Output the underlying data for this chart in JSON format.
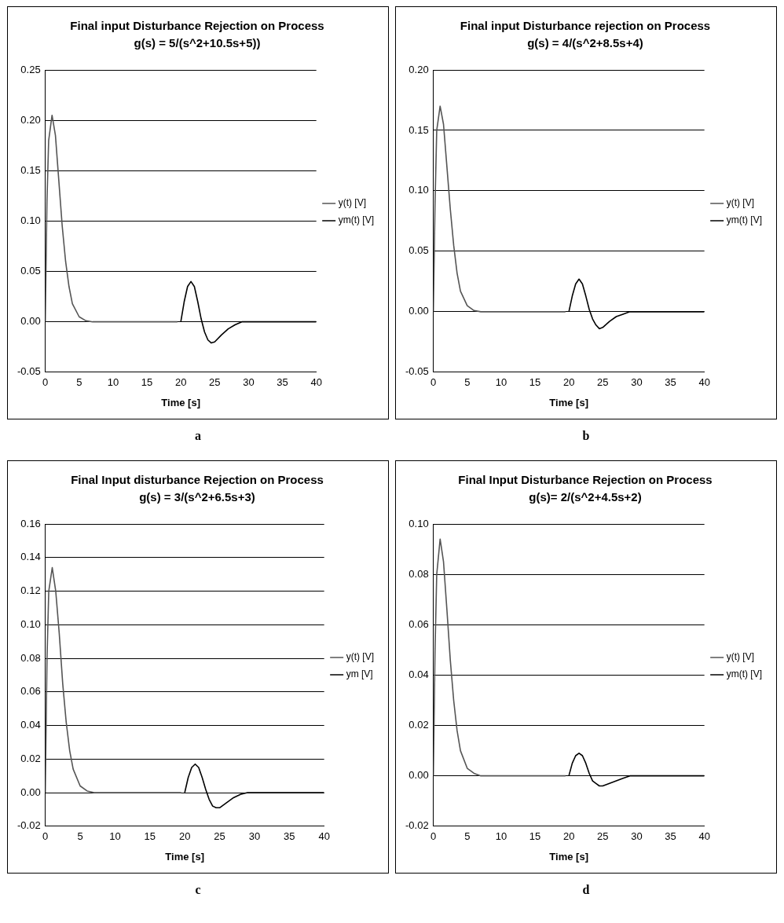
{
  "chart_data": [
    {
      "type": "line",
      "title": "Final input Disturbance Rejection on Process",
      "subtitle": "g(s) = 5/(s^2+10.5s+5))",
      "xlabel": "Time [s]",
      "annotations": [
        "a"
      ],
      "legend": "right",
      "grid": "y",
      "marker": "none",
      "xlim": [
        0,
        40
      ],
      "xticks": [
        0,
        5,
        10,
        15,
        20,
        25,
        30,
        35,
        40
      ],
      "ylim": [
        -0.05,
        0.25
      ],
      "yticks": [
        {
          "value": -0.05,
          "label": "-0.05"
        },
        {
          "value": 0,
          "label": "0.00"
        },
        {
          "value": 0.05,
          "label": "0.05"
        },
        {
          "value": 0.1,
          "label": "0.10"
        },
        {
          "value": 0.15,
          "label": "0.15"
        },
        {
          "value": 0.2,
          "label": "0.20"
        },
        {
          "value": 0.25,
          "label": "0.25"
        }
      ],
      "series": [
        {
          "name": "y(t) [V]",
          "color": "#555555",
          "x": [
            0,
            0.25,
            0.5,
            1,
            1.5,
            2,
            2.5,
            3,
            3.5,
            4,
            5,
            6,
            7,
            10,
            15,
            19.5
          ],
          "values": [
            0,
            0.12,
            0.18,
            0.205,
            0.185,
            0.14,
            0.095,
            0.06,
            0.035,
            0.018,
            0.005,
            0.001,
            0,
            0,
            0,
            0
          ]
        },
        {
          "name": "ym(t) [V]",
          "color": "#000000",
          "x": [
            20,
            20.5,
            21,
            21.5,
            22,
            22.5,
            23,
            23.5,
            24,
            24.5,
            25,
            26,
            27,
            28,
            29,
            30,
            35,
            40
          ],
          "values": [
            0,
            0.02,
            0.035,
            0.04,
            0.035,
            0.02,
            0.003,
            -0.01,
            -0.018,
            -0.021,
            -0.02,
            -0.013,
            -0.007,
            -0.003,
            0,
            0,
            0,
            0
          ]
        }
      ]
    },
    {
      "type": "line",
      "title": "Final input Disturbance rejection on Process",
      "subtitle": "g(s) = 4/(s^2+8.5s+4)",
      "xlabel": "Time [s]",
      "annotations": [
        "b"
      ],
      "legend": "right",
      "grid": "y",
      "marker": "none",
      "xlim": [
        0,
        40
      ],
      "xticks": [
        0,
        5,
        10,
        15,
        20,
        25,
        30,
        35,
        40
      ],
      "ylim": [
        -0.05,
        0.2
      ],
      "yticks": [
        {
          "value": -0.05,
          "label": "-0.05"
        },
        {
          "value": 0,
          "label": "0.00"
        },
        {
          "value": 0.05,
          "label": "0.05"
        },
        {
          "value": 0.1,
          "label": "0.10"
        },
        {
          "value": 0.15,
          "label": "0.15"
        },
        {
          "value": 0.2,
          "label": "0.20"
        }
      ],
      "series": [
        {
          "name": "y(t) [V]",
          "color": "#555555",
          "x": [
            0,
            0.25,
            0.5,
            1,
            1.5,
            2,
            2.5,
            3,
            3.5,
            4,
            5,
            6,
            7,
            10,
            15,
            19.5
          ],
          "values": [
            0,
            0.09,
            0.15,
            0.17,
            0.155,
            0.12,
            0.085,
            0.055,
            0.032,
            0.017,
            0.005,
            0.001,
            0,
            0,
            0,
            0
          ]
        },
        {
          "name": "ym(t) [V]",
          "color": "#000000",
          "x": [
            20,
            20.5,
            21,
            21.5,
            22,
            22.5,
            23,
            23.5,
            24,
            24.5,
            25,
            26,
            27,
            28,
            29,
            30,
            35,
            40
          ],
          "values": [
            0,
            0.013,
            0.023,
            0.027,
            0.023,
            0.013,
            0.002,
            -0.006,
            -0.011,
            -0.014,
            -0.013,
            -0.008,
            -0.004,
            -0.002,
            0,
            0,
            0,
            0
          ]
        }
      ]
    },
    {
      "type": "line",
      "title": "Final Input disturbance Rejection on Process",
      "subtitle": "g(s) = 3/(s^2+6.5s+3)",
      "xlabel": "Time [s]",
      "annotations": [
        "c"
      ],
      "legend": "right",
      "grid": "y",
      "marker": "none",
      "xlim": [
        0,
        40
      ],
      "xticks": [
        0,
        5,
        10,
        15,
        20,
        25,
        30,
        35,
        40
      ],
      "ylim": [
        -0.02,
        0.16
      ],
      "yticks": [
        {
          "value": -0.02,
          "label": "-0.02"
        },
        {
          "value": 0,
          "label": "0.00"
        },
        {
          "value": 0.02,
          "label": "0.02"
        },
        {
          "value": 0.04,
          "label": "0.04"
        },
        {
          "value": 0.06,
          "label": "0.06"
        },
        {
          "value": 0.08,
          "label": "0.08"
        },
        {
          "value": 0.1,
          "label": "0.10"
        },
        {
          "value": 0.12,
          "label": "0.12"
        },
        {
          "value": 0.14,
          "label": "0.14"
        },
        {
          "value": 0.16,
          "label": "0.16"
        }
      ],
      "series": [
        {
          "name": "y(t) [V]",
          "color": "#555555",
          "x": [
            0,
            0.25,
            0.5,
            1,
            1.5,
            2,
            2.5,
            3,
            3.5,
            4,
            5,
            6,
            7,
            10,
            15,
            19.5
          ],
          "values": [
            0,
            0.08,
            0.12,
            0.134,
            0.12,
            0.095,
            0.065,
            0.042,
            0.025,
            0.014,
            0.004,
            0.001,
            0,
            0,
            0,
            0
          ]
        },
        {
          "name": "ym [V]",
          "color": "#000000",
          "x": [
            20,
            20.5,
            21,
            21.5,
            22,
            22.5,
            23,
            23.5,
            24,
            24.5,
            25,
            26,
            27,
            28,
            29,
            30,
            35,
            40
          ],
          "values": [
            0,
            0.009,
            0.015,
            0.017,
            0.015,
            0.009,
            0.002,
            -0.004,
            -0.008,
            -0.009,
            -0.009,
            -0.006,
            -0.003,
            -0.001,
            0,
            0,
            0,
            0
          ]
        }
      ]
    },
    {
      "type": "line",
      "title": "Final Input Disturbance Rejection on Process",
      "subtitle": "g(s)= 2/(s^2+4.5s+2)",
      "xlabel": "Time [s]",
      "annotations": [
        "d"
      ],
      "legend": "right",
      "grid": "y",
      "marker": "none",
      "xlim": [
        0,
        40
      ],
      "xticks": [
        0,
        5,
        10,
        15,
        20,
        25,
        30,
        35,
        40
      ],
      "ylim": [
        -0.02,
        0.1
      ],
      "yticks": [
        {
          "value": -0.02,
          "label": "-0.02"
        },
        {
          "value": 0,
          "label": "0.00"
        },
        {
          "value": 0.02,
          "label": "0.02"
        },
        {
          "value": 0.04,
          "label": "0.04"
        },
        {
          "value": 0.06,
          "label": "0.06"
        },
        {
          "value": 0.08,
          "label": "0.08"
        },
        {
          "value": 0.1,
          "label": "0.10"
        }
      ],
      "series": [
        {
          "name": "y(t) [V]",
          "color": "#555555",
          "x": [
            0,
            0.25,
            0.5,
            1,
            1.5,
            2,
            2.5,
            3,
            3.5,
            4,
            5,
            6,
            7,
            10,
            15,
            19.5
          ],
          "values": [
            0,
            0.05,
            0.08,
            0.094,
            0.085,
            0.066,
            0.046,
            0.03,
            0.018,
            0.01,
            0.003,
            0.001,
            0,
            0,
            0,
            0
          ]
        },
        {
          "name": "ym(t) [V]",
          "color": "#000000",
          "x": [
            20,
            20.5,
            21,
            21.5,
            22,
            22.5,
            23,
            23.5,
            24,
            24.5,
            25,
            26,
            27,
            28,
            29,
            30,
            35,
            40
          ],
          "values": [
            0,
            0.005,
            0.008,
            0.009,
            0.008,
            0.005,
            0.001,
            -0.002,
            -0.003,
            -0.004,
            -0.004,
            -0.003,
            -0.002,
            -0.001,
            0,
            0,
            0,
            0
          ]
        }
      ]
    }
  ]
}
